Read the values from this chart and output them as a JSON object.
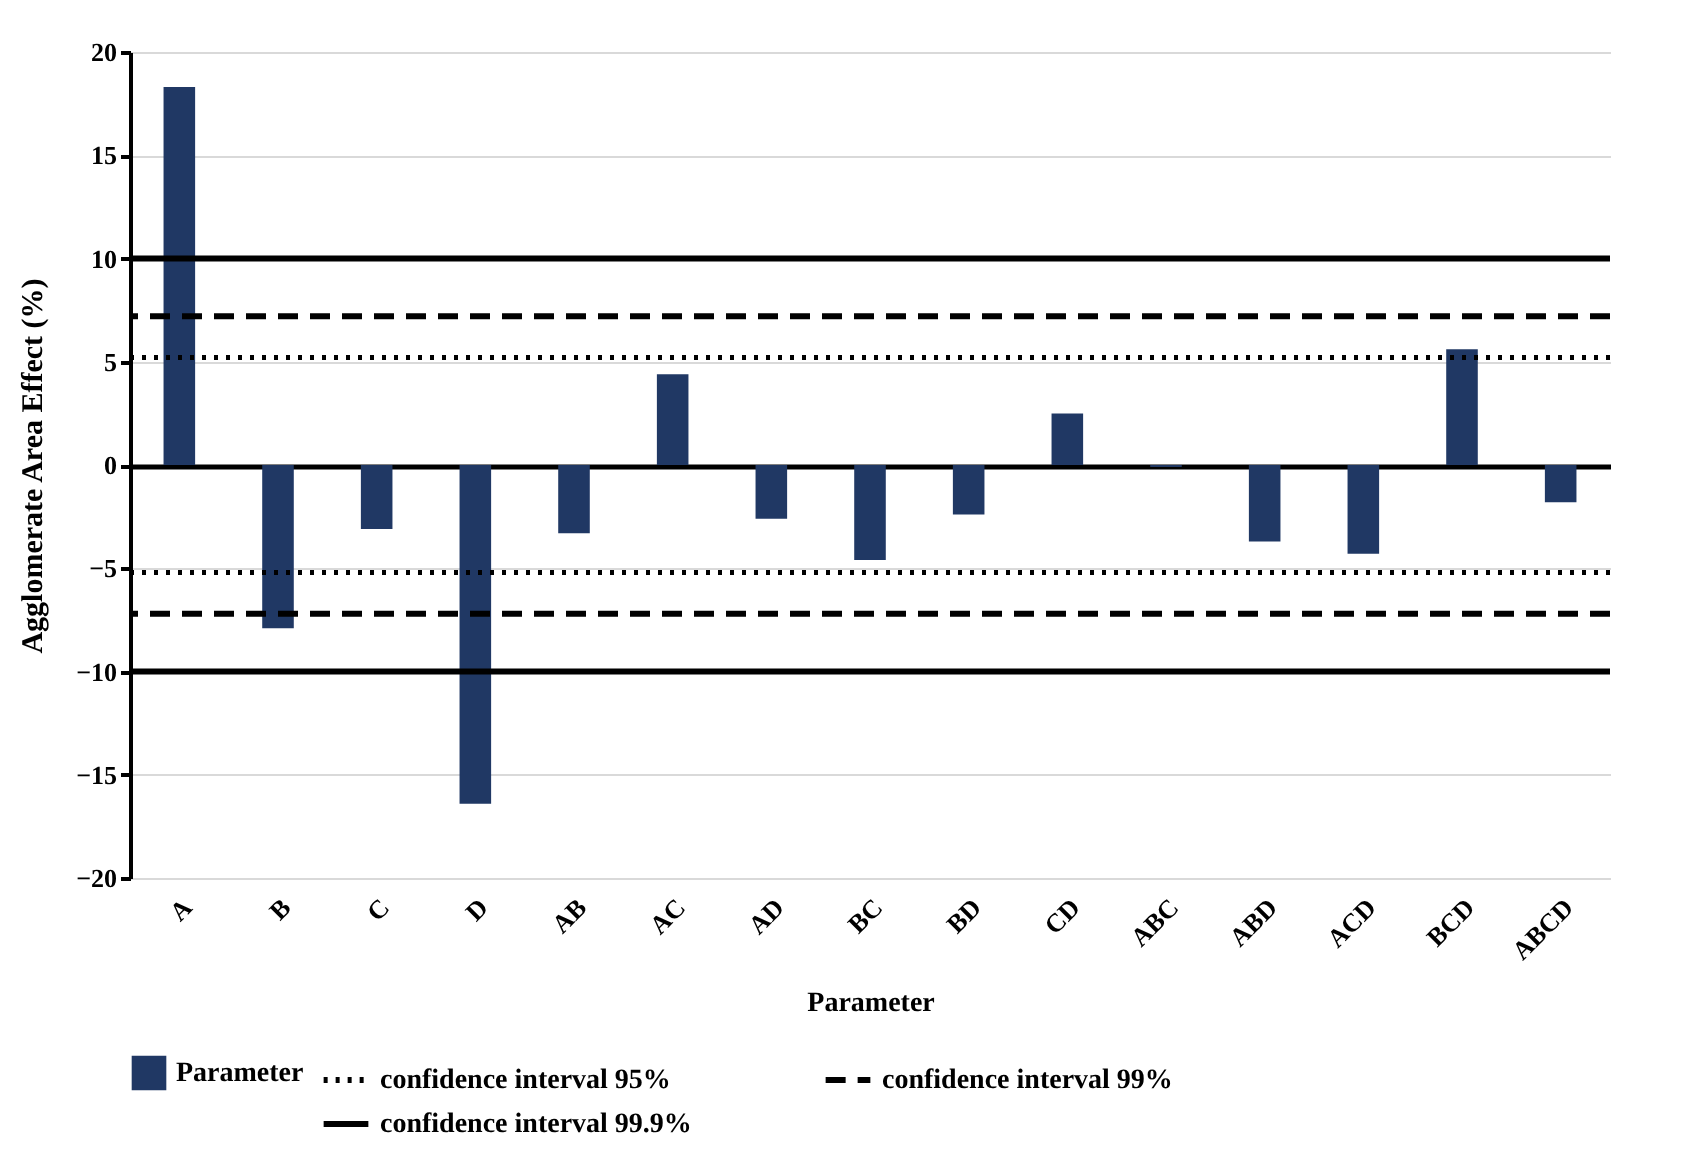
{
  "chart_data": {
    "type": "bar",
    "xlabel": "Parameter",
    "ylabel": "Agglomerate Area Effect  (%)",
    "categories": [
      "A",
      "B",
      "C",
      "D",
      "AB",
      "AC",
      "AD",
      "BC",
      "BD",
      "CD",
      "ABC",
      "ABD",
      "ACD",
      "BCD",
      "ABCD"
    ],
    "series": [
      {
        "name": "Parameter",
        "color": "#203864",
        "values": [
          18.3,
          -7.9,
          -3.1,
          -16.4,
          -3.3,
          4.4,
          -2.6,
          -4.6,
          -2.4,
          2.5,
          -0.1,
          -3.7,
          -4.3,
          5.6,
          -1.8
        ]
      }
    ],
    "ylim": [
      -20,
      20
    ],
    "yticks": [
      -20,
      -15,
      -10,
      -5,
      0,
      5,
      10,
      15,
      20
    ],
    "grid": "y",
    "legend": "bottom",
    "ref_lines": [
      {
        "axis": "y",
        "value": 5.2,
        "label": "confidence interval 95%",
        "color": "#000000",
        "line_style": "dotted"
      },
      {
        "axis": "y",
        "value": -5.2,
        "color": "#000000",
        "line_style": "dotted"
      },
      {
        "axis": "y",
        "value": 7.2,
        "label": "confidence interval 99%",
        "color": "#000000",
        "line_style": "dashed"
      },
      {
        "axis": "y",
        "value": -7.2,
        "color": "#000000",
        "line_style": "dashed"
      },
      {
        "axis": "y",
        "value": 10,
        "label": "confidence interval 99.9%",
        "color": "#000000",
        "line_style": "solid"
      },
      {
        "axis": "y",
        "value": -10,
        "color": "#000000",
        "line_style": "solid"
      }
    ]
  }
}
